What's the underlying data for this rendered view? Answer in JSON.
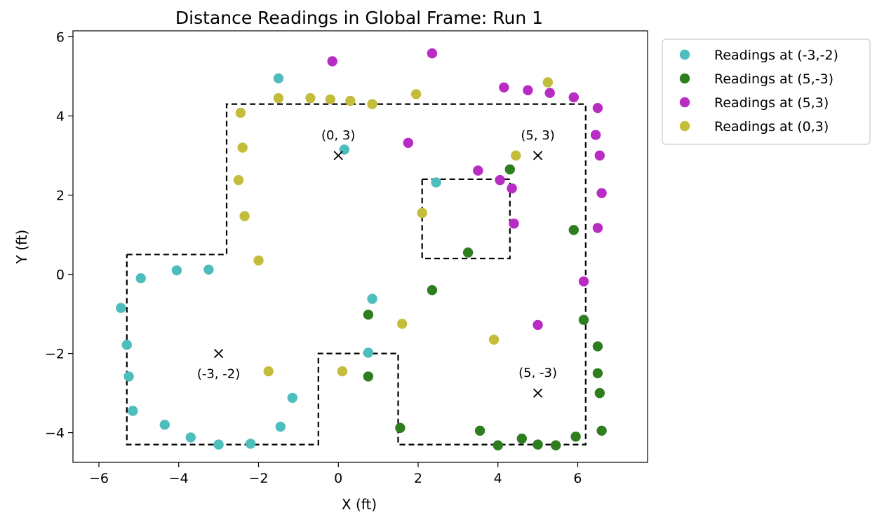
{
  "chart_data": {
    "type": "scatter",
    "title": "Distance Readings in Global Frame: Run 1",
    "xlabel": "X (ft)",
    "ylabel": "Y (ft)",
    "xlim": [
      -6.65,
      7.75
    ],
    "ylim": [
      -4.75,
      6.15
    ],
    "xticks": [
      -6,
      -4,
      -2,
      0,
      2,
      4,
      6
    ],
    "yticks": [
      -4,
      -2,
      0,
      2,
      4,
      6
    ],
    "tick_labels_x": [
      "−6",
      "−4",
      "−2",
      "0",
      "2",
      "4",
      "6"
    ],
    "tick_labels_y": [
      "−4",
      "−2",
      "0",
      "2",
      "4",
      "6"
    ],
    "grid": false,
    "legend_position": "outside-upper-right",
    "series": [
      {
        "name": "Readings at (-3,-2)",
        "color": "#4ebdbd",
        "points": [
          [
            -5.45,
            -0.85
          ],
          [
            -5.3,
            -1.78
          ],
          [
            -5.25,
            -2.58
          ],
          [
            -5.15,
            -3.45
          ],
          [
            -4.95,
            -0.1
          ],
          [
            -4.35,
            -3.8
          ],
          [
            -4.05,
            0.1
          ],
          [
            -3.7,
            -4.12
          ],
          [
            -3.25,
            0.12
          ],
          [
            -3.0,
            -4.3
          ],
          [
            -2.2,
            -4.28
          ],
          [
            -1.45,
            -3.85
          ],
          [
            -1.15,
            -3.12
          ],
          [
            -1.5,
            4.95
          ],
          [
            0.15,
            3.15
          ],
          [
            0.75,
            -1.98
          ],
          [
            0.85,
            -0.62
          ],
          [
            2.45,
            2.32
          ]
        ]
      },
      {
        "name": "Readings at (5,-3)",
        "color": "#2e7d1f",
        "points": [
          [
            0.75,
            -1.02
          ],
          [
            0.75,
            -2.58
          ],
          [
            1.55,
            -3.88
          ],
          [
            2.35,
            -0.4
          ],
          [
            3.25,
            0.55
          ],
          [
            3.55,
            -3.95
          ],
          [
            4.0,
            -4.32
          ],
          [
            4.3,
            2.65
          ],
          [
            4.6,
            -4.15
          ],
          [
            5.0,
            -4.3
          ],
          [
            5.45,
            -4.32
          ],
          [
            5.9,
            1.12
          ],
          [
            5.95,
            -4.1
          ],
          [
            6.15,
            -1.15
          ],
          [
            6.5,
            -1.82
          ],
          [
            6.5,
            -2.5
          ],
          [
            6.55,
            -3.0
          ],
          [
            6.6,
            -3.95
          ]
        ]
      },
      {
        "name": "Readings at (5,3)",
        "color": "#b82cc4",
        "points": [
          [
            -0.15,
            5.38
          ],
          [
            1.75,
            3.32
          ],
          [
            2.35,
            5.58
          ],
          [
            3.5,
            2.62
          ],
          [
            4.05,
            2.38
          ],
          [
            4.15,
            4.72
          ],
          [
            4.35,
            2.17
          ],
          [
            4.4,
            1.28
          ],
          [
            4.75,
            4.65
          ],
          [
            5.0,
            -1.28
          ],
          [
            5.3,
            4.58
          ],
          [
            5.9,
            4.47
          ],
          [
            6.15,
            -0.18
          ],
          [
            6.45,
            3.52
          ],
          [
            6.5,
            4.2
          ],
          [
            6.5,
            1.17
          ],
          [
            6.55,
            3.0
          ],
          [
            6.6,
            2.05
          ]
        ]
      },
      {
        "name": "Readings at (0,3)",
        "color": "#c4bd3c",
        "points": [
          [
            -2.45,
            4.08
          ],
          [
            -2.4,
            3.2
          ],
          [
            -2.5,
            2.38
          ],
          [
            -2.35,
            1.47
          ],
          [
            -2.0,
            0.35
          ],
          [
            -1.75,
            -2.45
          ],
          [
            -1.5,
            4.45
          ],
          [
            -0.7,
            4.45
          ],
          [
            -0.2,
            4.42
          ],
          [
            0.3,
            4.38
          ],
          [
            0.85,
            4.3
          ],
          [
            0.1,
            -2.45
          ],
          [
            1.6,
            -1.25
          ],
          [
            1.95,
            4.55
          ],
          [
            2.1,
            1.55
          ],
          [
            3.9,
            -1.65
          ],
          [
            4.45,
            3.0
          ],
          [
            5.25,
            4.85
          ]
        ]
      }
    ],
    "markers": [
      {
        "x": 0,
        "y": 3,
        "label": "(0, 3)",
        "label_pos": "above"
      },
      {
        "x": 5,
        "y": 3,
        "label": "(5, 3)",
        "label_pos": "above"
      },
      {
        "x": -3,
        "y": -2,
        "label": "(-3, -2)",
        "label_pos": "below"
      },
      {
        "x": 5,
        "y": -3,
        "label": "(5, -3)",
        "label_pos": "above"
      }
    ],
    "boundaries": [
      {
        "name": "outer-wall",
        "points": [
          [
            -5.3,
            0.5
          ],
          [
            -2.8,
            0.5
          ],
          [
            -2.8,
            4.3
          ],
          [
            6.2,
            4.3
          ],
          [
            6.2,
            -4.3
          ],
          [
            1.5,
            -4.3
          ],
          [
            1.5,
            -2.0
          ],
          [
            -0.5,
            -2.0
          ],
          [
            -0.5,
            -4.3
          ],
          [
            -5.3,
            -4.3
          ],
          [
            -5.3,
            0.5
          ]
        ]
      },
      {
        "name": "inner-obstacle",
        "points": [
          [
            2.1,
            2.4
          ],
          [
            4.3,
            2.4
          ],
          [
            4.3,
            0.4
          ],
          [
            2.1,
            0.4
          ],
          [
            2.1,
            2.4
          ]
        ]
      }
    ]
  }
}
